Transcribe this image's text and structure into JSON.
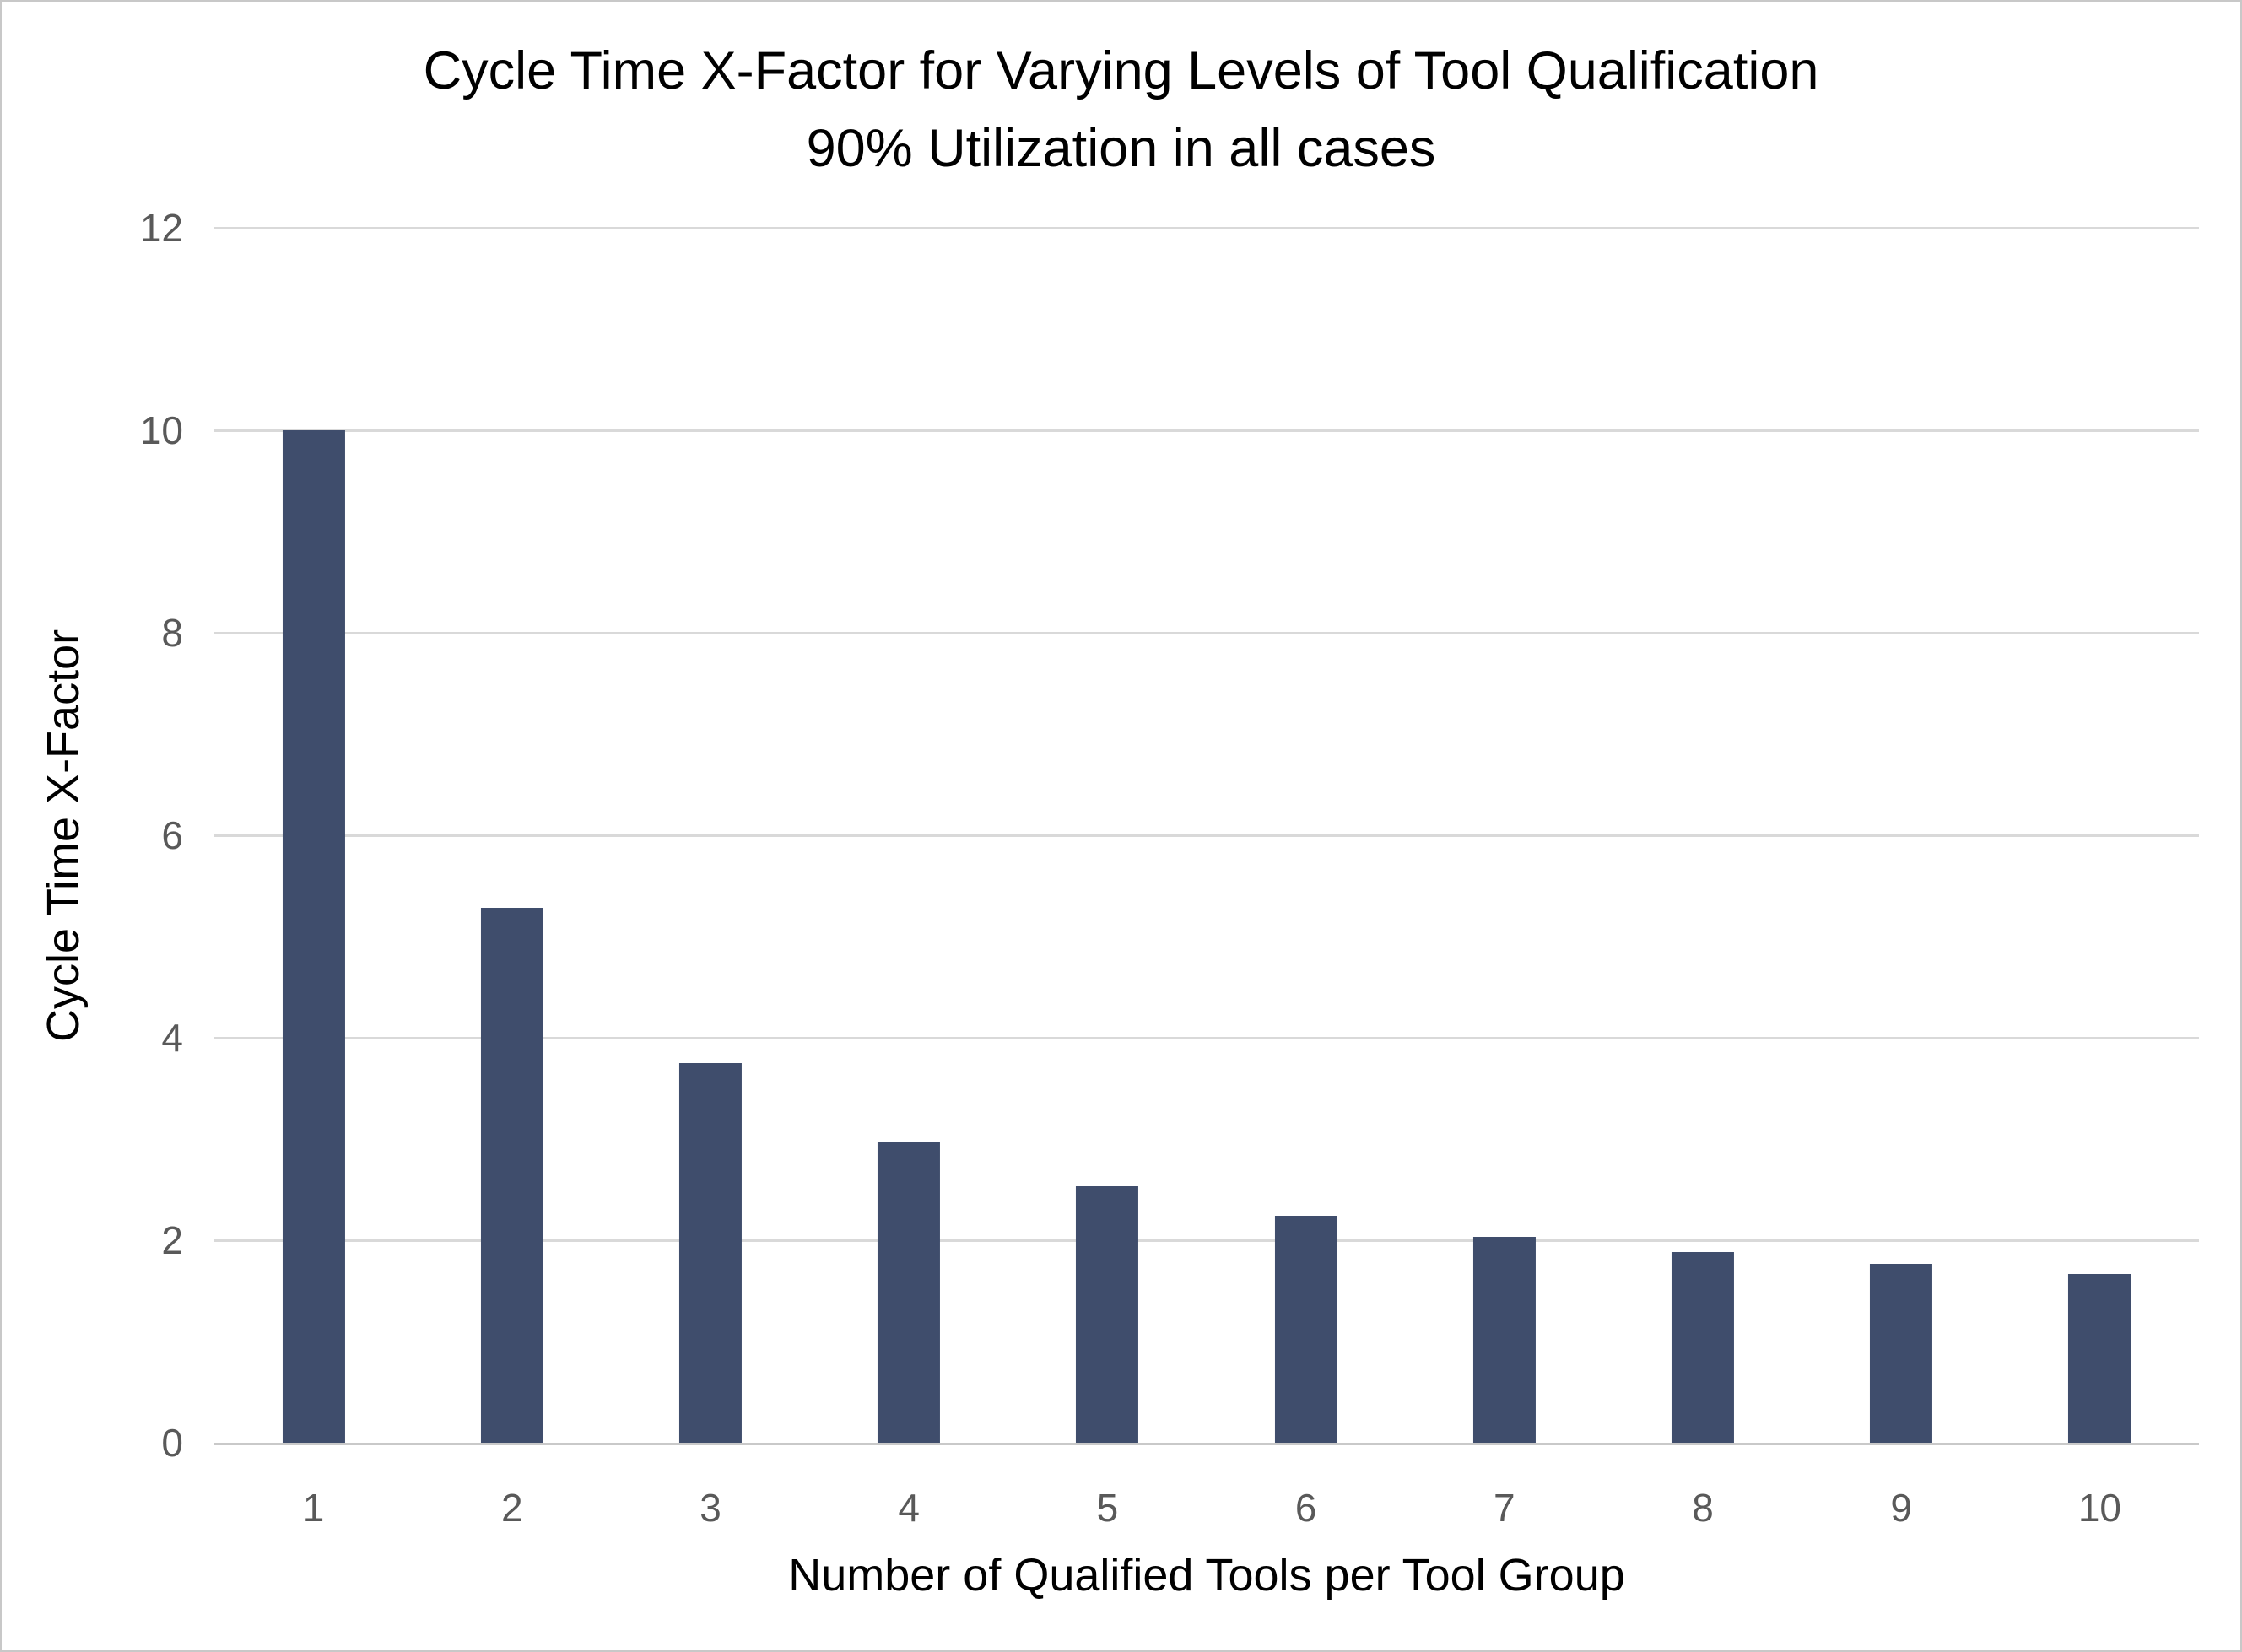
{
  "chart_data": {
    "type": "bar",
    "title": "Cycle Time X-Factor for Varying Levels of Tool Qualification",
    "subtitle": "90% Utilization in all cases",
    "xlabel": "Number of Qualified Tools per Tool Group",
    "ylabel": "Cycle Time X-Factor",
    "categories": [
      "1",
      "2",
      "3",
      "4",
      "5",
      "6",
      "7",
      "8",
      "9",
      "10"
    ],
    "values": [
      10.0,
      5.28,
      3.75,
      2.97,
      2.53,
      2.24,
      2.03,
      1.88,
      1.77,
      1.67
    ],
    "ylim": [
      0,
      12
    ],
    "yticks": [
      0,
      2,
      4,
      6,
      8,
      10,
      12
    ],
    "grid": "horizontal",
    "legend": "none",
    "colors": {
      "bar": "#3f4d6c",
      "gridline": "#d9d9d9",
      "axis_line": "#c9c9c9",
      "tick_label": "#595959",
      "title": "#000000",
      "frame_border": "#c8c8c8",
      "background": "#ffffff"
    }
  }
}
